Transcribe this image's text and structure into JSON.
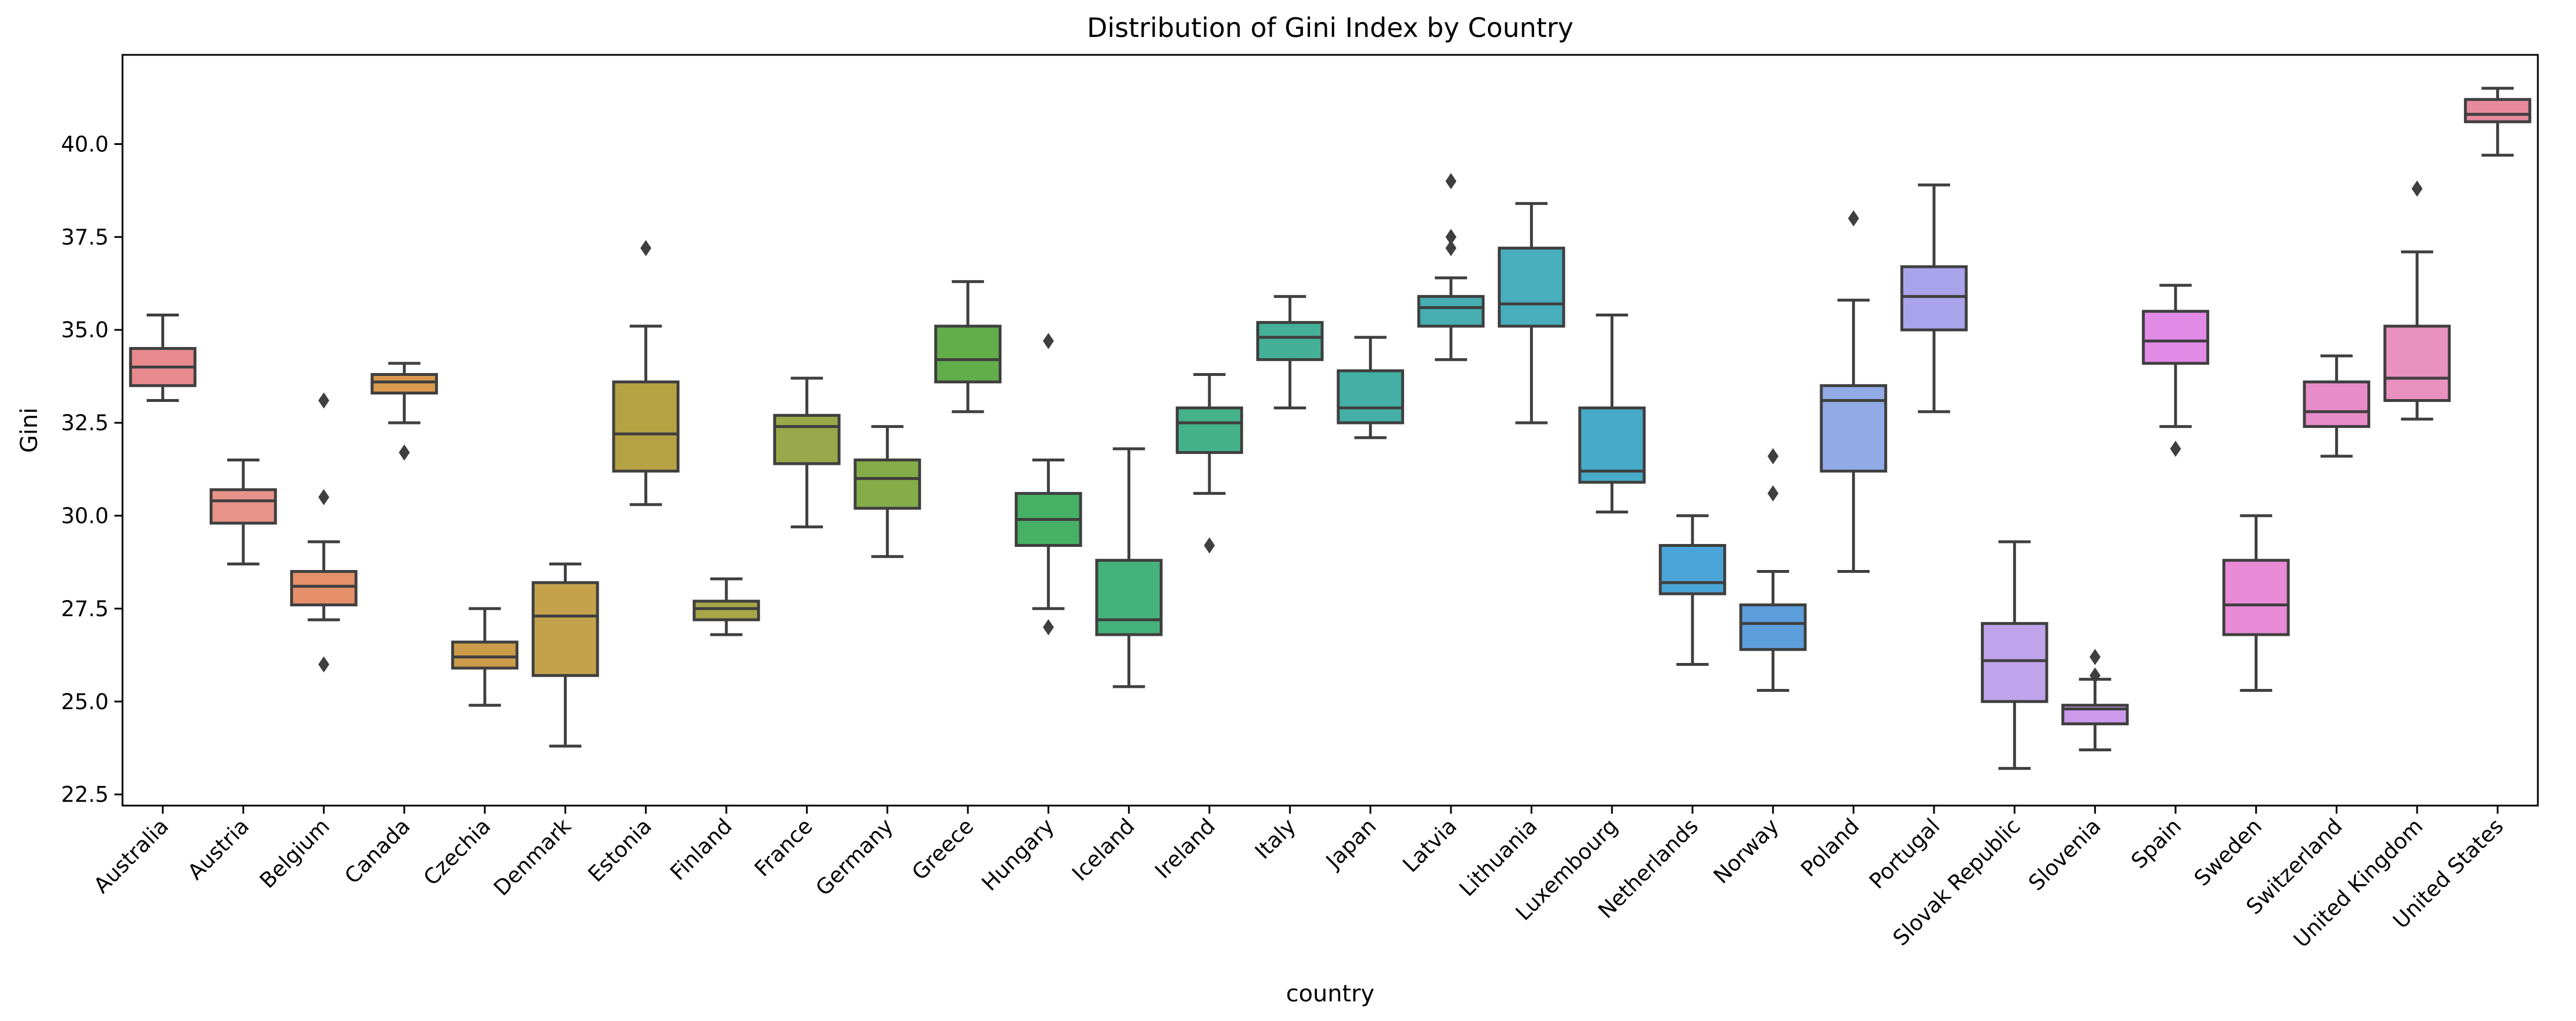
{
  "chart_data": {
    "type": "box",
    "title": "Distribution of Gini Index by Country",
    "xlabel": "country",
    "ylabel": "Gini",
    "ylim": [
      22.2,
      42.4
    ],
    "yticks": [
      "22.5",
      "25.0",
      "27.5",
      "30.0",
      "32.5",
      "35.0",
      "37.5",
      "40.0"
    ],
    "grid": false,
    "legend": "none",
    "boxes": [
      {
        "category": "Australia",
        "whislo": 33.1,
        "q1": 33.5,
        "median": 34.0,
        "q3": 34.5,
        "whishi": 35.4,
        "fliers": [],
        "color": "#e88a8d"
      },
      {
        "category": "Austria",
        "whislo": 28.7,
        "q1": 29.8,
        "median": 30.4,
        "q3": 30.7,
        "whishi": 31.5,
        "fliers": [],
        "color": "#e8938a"
      },
      {
        "category": "Belgium",
        "whislo": 27.2,
        "q1": 27.6,
        "median": 28.1,
        "q3": 28.5,
        "whishi": 29.3,
        "fliers": [
          26.0,
          30.5,
          33.1
        ],
        "color": "#e5906b"
      },
      {
        "category": "Canada",
        "whislo": 32.5,
        "q1": 33.3,
        "median": 33.6,
        "q3": 33.8,
        "whishi": 34.1,
        "fliers": [
          31.7
        ],
        "color": "#d99a4e"
      },
      {
        "category": "Czechia",
        "whislo": 24.9,
        "q1": 25.9,
        "median": 26.2,
        "q3": 26.6,
        "whishi": 27.5,
        "fliers": [],
        "color": "#cc9c4a"
      },
      {
        "category": "Denmark",
        "whislo": 23.8,
        "q1": 25.7,
        "median": 27.3,
        "q3": 28.2,
        "whishi": 28.7,
        "fliers": [],
        "color": "#c4a24c"
      },
      {
        "category": "Estonia",
        "whislo": 30.3,
        "q1": 31.2,
        "median": 32.2,
        "q3": 33.6,
        "whishi": 35.1,
        "fliers": [
          37.2
        ],
        "color": "#b5a343"
      },
      {
        "category": "Finland",
        "whislo": 26.8,
        "q1": 27.2,
        "median": 27.5,
        "q3": 27.7,
        "whishi": 28.3,
        "fliers": [],
        "color": "#a8a748"
      },
      {
        "category": "France",
        "whislo": 29.7,
        "q1": 31.4,
        "median": 32.4,
        "q3": 32.7,
        "whishi": 33.7,
        "fliers": [],
        "color": "#98a84a"
      },
      {
        "category": "Germany",
        "whislo": 28.9,
        "q1": 30.2,
        "median": 31.0,
        "q3": 31.5,
        "whishi": 32.4,
        "fliers": [],
        "color": "#84ad4a"
      },
      {
        "category": "Greece",
        "whislo": 32.8,
        "q1": 33.6,
        "median": 34.2,
        "q3": 35.1,
        "whishi": 36.3,
        "fliers": [],
        "color": "#62ae4b"
      },
      {
        "category": "Hungary",
        "whislo": 27.5,
        "q1": 29.2,
        "median": 29.9,
        "q3": 30.6,
        "whishi": 31.5,
        "fliers": [
          27.0,
          34.7
        ],
        "color": "#46b164"
      },
      {
        "category": "Iceland",
        "whislo": 25.4,
        "q1": 26.8,
        "median": 27.2,
        "q3": 28.8,
        "whishi": 31.8,
        "fliers": [],
        "color": "#45b27b"
      },
      {
        "category": "Ireland",
        "whislo": 30.6,
        "q1": 31.7,
        "median": 32.5,
        "q3": 32.9,
        "whishi": 33.8,
        "fliers": [
          29.2
        ],
        "color": "#45b28b"
      },
      {
        "category": "Italy",
        "whislo": 32.9,
        "q1": 34.2,
        "median": 34.8,
        "q3": 35.2,
        "whishi": 35.9,
        "fliers": [],
        "color": "#44b098"
      },
      {
        "category": "Japan",
        "whislo": 32.1,
        "q1": 32.5,
        "median": 32.9,
        "q3": 33.9,
        "whishi": 34.8,
        "fliers": [],
        "color": "#44afa5"
      },
      {
        "category": "Latvia",
        "whislo": 34.2,
        "q1": 35.1,
        "median": 35.6,
        "q3": 35.9,
        "whishi": 36.4,
        "fliers": [
          37.2,
          37.5,
          39.0
        ],
        "color": "#46aeb0"
      },
      {
        "category": "Lithuania",
        "whislo": 32.5,
        "q1": 35.1,
        "median": 35.7,
        "q3": 37.2,
        "whishi": 38.4,
        "fliers": [],
        "color": "#48adbd"
      },
      {
        "category": "Luxembourg",
        "whislo": 30.1,
        "q1": 30.9,
        "median": 31.2,
        "q3": 32.9,
        "whishi": 35.4,
        "fliers": [],
        "color": "#47aac8"
      },
      {
        "category": "Netherlands",
        "whislo": 26.0,
        "q1": 27.9,
        "median": 28.2,
        "q3": 29.2,
        "whishi": 30.0,
        "fliers": [],
        "color": "#4aa4d7"
      },
      {
        "category": "Norway",
        "whislo": 25.3,
        "q1": 26.4,
        "median": 27.1,
        "q3": 27.6,
        "whishi": 28.5,
        "fliers": [
          30.6,
          31.6
        ],
        "color": "#5d9edd"
      },
      {
        "category": "Poland",
        "whislo": 28.5,
        "q1": 31.2,
        "median": 33.1,
        "q3": 33.5,
        "whishi": 35.8,
        "fliers": [
          38.0
        ],
        "color": "#92aae6"
      },
      {
        "category": "Portugal",
        "whislo": 32.8,
        "q1": 35.0,
        "median": 35.9,
        "q3": 36.7,
        "whishi": 38.9,
        "fliers": [],
        "color": "#aaa4ec"
      },
      {
        "category": "Slovak Republic",
        "whislo": 23.2,
        "q1": 25.0,
        "median": 26.1,
        "q3": 27.1,
        "whishi": 29.3,
        "fliers": [],
        "color": "#bfa4ec"
      },
      {
        "category": "Slovenia",
        "whislo": 23.7,
        "q1": 24.4,
        "median": 24.8,
        "q3": 24.9,
        "whishi": 25.6,
        "fliers": [
          25.7,
          26.2
        ],
        "color": "#cb9aea"
      },
      {
        "category": "Spain",
        "whislo": 32.4,
        "q1": 34.1,
        "median": 34.7,
        "q3": 35.5,
        "whishi": 36.2,
        "fliers": [
          31.8
        ],
        "color": "#e18ae6"
      },
      {
        "category": "Sweden",
        "whislo": 25.3,
        "q1": 26.8,
        "median": 27.6,
        "q3": 28.8,
        "whishi": 30.0,
        "fliers": [],
        "color": "#e88ad6"
      },
      {
        "category": "Switzerland",
        "whislo": 31.6,
        "q1": 32.4,
        "median": 32.8,
        "q3": 33.6,
        "whishi": 34.3,
        "fliers": [],
        "color": "#e78cc8"
      },
      {
        "category": "United Kingdom",
        "whislo": 32.6,
        "q1": 33.1,
        "median": 33.7,
        "q3": 35.1,
        "whishi": 37.1,
        "fliers": [
          38.8
        ],
        "color": "#e991bf"
      },
      {
        "category": "United States",
        "whislo": 39.7,
        "q1": 40.6,
        "median": 40.8,
        "q3": 41.2,
        "whishi": 41.5,
        "fliers": [],
        "color": "#e88a9e"
      }
    ]
  }
}
